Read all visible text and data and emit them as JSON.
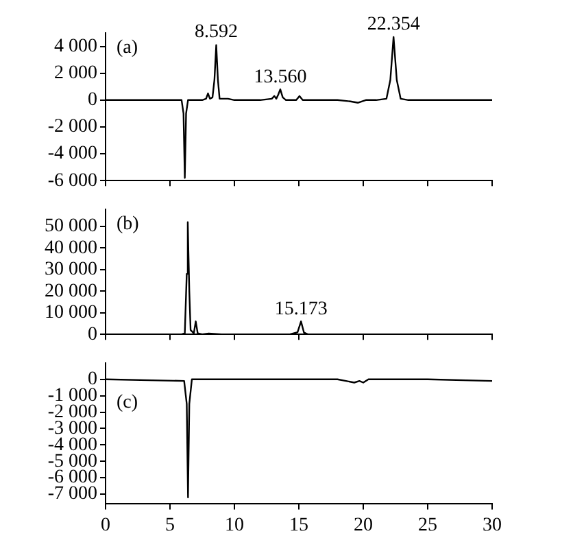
{
  "chart_data": [
    {
      "type": "line",
      "annotations": [
        "(a)",
        {
          "text": "8.592",
          "x": 8.592,
          "y": 4150
        },
        {
          "text": "13.560",
          "x": 13.56,
          "y": 800
        },
        {
          "text": "22.354",
          "x": 22.354,
          "y": 4700
        }
      ],
      "series": [
        {
          "color": "#000000",
          "x": [
            0,
            5,
            5.9,
            6.05,
            6.15,
            6.25,
            6.4,
            7.5,
            7.8,
            7.95,
            8.1,
            8.3,
            8.45,
            8.59,
            8.72,
            8.85,
            9.5,
            10,
            12,
            12.9,
            13.1,
            13.25,
            13.4,
            13.56,
            13.75,
            14,
            14.8,
            15.05,
            15.3,
            16,
            18,
            19,
            19.6,
            20.2,
            21,
            21.8,
            22.1,
            22.35,
            22.6,
            22.9,
            23.5,
            30
          ],
          "values": [
            0,
            0,
            0,
            -1000,
            -5800,
            -1000,
            0,
            0,
            100,
            500,
            100,
            200,
            1500,
            4100,
            1500,
            100,
            100,
            0,
            0,
            100,
            300,
            100,
            400,
            800,
            200,
            0,
            0,
            300,
            0,
            0,
            0,
            -100,
            -200,
            0,
            0,
            100,
            1500,
            4700,
            1500,
            100,
            0,
            0
          ]
        }
      ],
      "xlim": [
        0,
        30
      ],
      "xticks": [
        0,
        5,
        10,
        15,
        20,
        25,
        30
      ],
      "ylim": [
        -6000,
        5000
      ],
      "yticks": [
        {
          "value": -6000,
          "label": "-6 000"
        },
        {
          "value": -4000,
          "label": "-4 000"
        },
        {
          "value": -2000,
          "label": "-2 000"
        },
        {
          "value": 0,
          "label": "0"
        },
        {
          "value": 2000,
          "label": "2 000"
        },
        {
          "value": 4000,
          "label": "4 000"
        }
      ],
      "tick_labels": "y",
      "marker": "none",
      "line_style": "solid"
    },
    {
      "type": "line",
      "annotations": [
        "(b)",
        {
          "text": "15.173",
          "x": 15.173,
          "y": 6000
        }
      ],
      "series": [
        {
          "color": "#000000",
          "x": [
            0,
            5.9,
            6.15,
            6.3,
            6.38,
            6.5,
            6.6,
            6.85,
            7,
            7.15,
            7.5,
            8,
            9,
            14.3,
            14.9,
            15.17,
            15.4,
            15.7,
            30
          ],
          "values": [
            0,
            0,
            500,
            28000,
            52000,
            20000,
            2000,
            500,
            6000,
            500,
            0,
            400,
            0,
            0,
            1000,
            6000,
            800,
            0,
            0
          ]
        }
      ],
      "xlim": [
        0,
        30
      ],
      "xticks": [
        0,
        5,
        10,
        15,
        20,
        25,
        30
      ],
      "ylim": [
        0,
        58000
      ],
      "yticks": [
        {
          "value": 0,
          "label": "0"
        },
        {
          "value": 10000,
          "label": "10 000"
        },
        {
          "value": 20000,
          "label": "20 000"
        },
        {
          "value": 30000,
          "label": "30 000"
        },
        {
          "value": 40000,
          "label": "40 000"
        },
        {
          "value": 50000,
          "label": "50 000"
        }
      ],
      "tick_labels": "y",
      "marker": "none",
      "line_style": "solid"
    },
    {
      "type": "line",
      "annotations": [
        "(c)"
      ],
      "series": [
        {
          "color": "#000000",
          "x": [
            0,
            6.1,
            6.3,
            6.4,
            6.5,
            6.7,
            18,
            19.3,
            19.7,
            20,
            20.4,
            25,
            30
          ],
          "values": [
            0,
            -100,
            -1500,
            -7200,
            -1500,
            0,
            0,
            -200,
            -100,
            -200,
            0,
            0,
            -100
          ]
        }
      ],
      "xlim": [
        0,
        30
      ],
      "xticks": [
        0,
        5,
        10,
        15,
        20,
        25,
        30
      ],
      "ylim": [
        -7600,
        1000
      ],
      "yticks": [
        {
          "value": -7000,
          "label": "-7 000"
        },
        {
          "value": -6000,
          "label": "-6 000"
        },
        {
          "value": -5000,
          "label": "-5 000"
        },
        {
          "value": -4000,
          "label": "-4 000"
        },
        {
          "value": -3000,
          "label": "-3 000"
        },
        {
          "value": -2000,
          "label": "-2 000"
        },
        {
          "value": -1000,
          "label": "-1 000"
        },
        {
          "value": 0,
          "label": "0"
        }
      ],
      "marker": "none",
      "line_style": "solid"
    }
  ]
}
